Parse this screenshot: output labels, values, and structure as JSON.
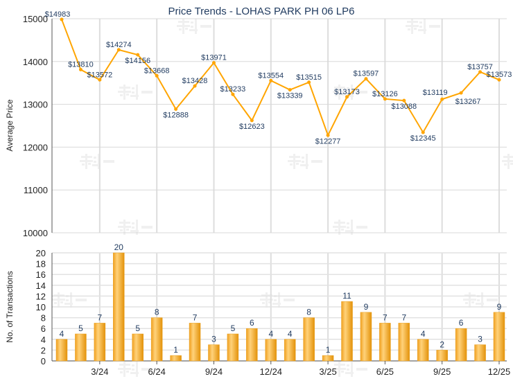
{
  "chart_data": [
    {
      "type": "line",
      "title": "Price Trends - LOHAS PARK PH 06 LP6",
      "ylabel": "Average Price",
      "xlabel": "",
      "ylim": [
        10000,
        15000
      ],
      "yticks": [
        10000,
        11000,
        12000,
        13000,
        14000,
        15000
      ],
      "grid": true,
      "color": "#FFA500",
      "values": [
        14983,
        13810,
        13572,
        14274,
        14156,
        13668,
        12888,
        13428,
        13971,
        13233,
        12623,
        13554,
        13339,
        13515,
        12277,
        13173,
        13597,
        13126,
        13088,
        12345,
        13119,
        13267,
        13757,
        13573
      ],
      "value_labels": [
        "$14983",
        "$13810",
        "$13572",
        "$14274",
        "$14156",
        "$13668",
        "$12888",
        "$13428",
        "$13971",
        "$13233",
        "$12623",
        "$13554",
        "$13339",
        "$13515",
        "$12277",
        "$13173",
        "$13597",
        "$13126",
        "$13088",
        "$12345",
        "$13119",
        "$13267",
        "$13757",
        "$13573"
      ]
    },
    {
      "type": "bar",
      "ylabel": "No. of Transactions",
      "ylim": [
        0,
        20
      ],
      "yticks": [
        0,
        2,
        4,
        6,
        8,
        10,
        12,
        14,
        16,
        18,
        20
      ],
      "grid": true,
      "color": "#F2A71B",
      "values": [
        4,
        5,
        7,
        20,
        5,
        8,
        1,
        7,
        3,
        5,
        6,
        4,
        4,
        8,
        1,
        11,
        9,
        7,
        7,
        4,
        2,
        6,
        3,
        9
      ],
      "xtick_labels": [
        "3/24",
        "6/24",
        "9/24",
        "12/24",
        "3/25",
        "6/25",
        "9/25",
        "12/25"
      ]
    }
  ],
  "watermark": "科一"
}
